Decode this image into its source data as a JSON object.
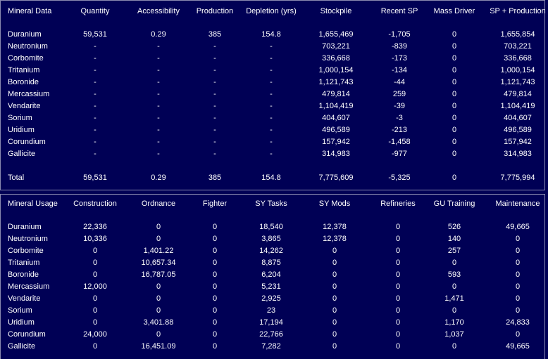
{
  "mineral_data": {
    "headers": [
      "Mineral Data",
      "Quantity",
      "Accessibility",
      "Production",
      "Depletion (yrs)",
      "Stockpile",
      "Recent SP",
      "Mass Driver",
      "SP + Production"
    ],
    "rows": [
      [
        "Duranium",
        "59,531",
        "0.29",
        "385",
        "154.8",
        "1,655,469",
        "-1,705",
        "0",
        "1,655,854"
      ],
      [
        "Neutronium",
        "-",
        "-",
        "-",
        "-",
        "703,221",
        "-839",
        "0",
        "703,221"
      ],
      [
        "Corbomite",
        "-",
        "-",
        "-",
        "-",
        "336,668",
        "-173",
        "0",
        "336,668"
      ],
      [
        "Tritanium",
        "-",
        "-",
        "-",
        "-",
        "1,000,154",
        "-134",
        "0",
        "1,000,154"
      ],
      [
        "Boronide",
        "-",
        "-",
        "-",
        "-",
        "1,121,743",
        "-44",
        "0",
        "1,121,743"
      ],
      [
        "Mercassium",
        "-",
        "-",
        "-",
        "-",
        "479,814",
        "259",
        "0",
        "479,814"
      ],
      [
        "Vendarite",
        "-",
        "-",
        "-",
        "-",
        "1,104,419",
        "-39",
        "0",
        "1,104,419"
      ],
      [
        "Sorium",
        "-",
        "-",
        "-",
        "-",
        "404,607",
        "-3",
        "0",
        "404,607"
      ],
      [
        "Uridium",
        "-",
        "-",
        "-",
        "-",
        "496,589",
        "-213",
        "0",
        "496,589"
      ],
      [
        "Corundium",
        "-",
        "-",
        "-",
        "-",
        "157,942",
        "-1,458",
        "0",
        "157,942"
      ],
      [
        "Gallicite",
        "-",
        "-",
        "-",
        "-",
        "314,983",
        "-977",
        "0",
        "314,983"
      ]
    ],
    "total": [
      "Total",
      "59,531",
      "0.29",
      "385",
      "154.8",
      "7,775,609",
      "-5,325",
      "0",
      "7,775,994"
    ]
  },
  "mineral_usage": {
    "headers": [
      "Mineral Usage",
      "Construction",
      "Ordnance",
      "Fighter",
      "SY Tasks",
      "SY Mods",
      "Refineries",
      "GU Training",
      "Maintenance"
    ],
    "rows": [
      [
        "Duranium",
        "22,336",
        "0",
        "0",
        "18,540",
        "12,378",
        "0",
        "526",
        "49,665"
      ],
      [
        "Neutronium",
        "10,336",
        "0",
        "0",
        "3,865",
        "12,378",
        "0",
        "140",
        "0"
      ],
      [
        "Corbomite",
        "0",
        "1,401.22",
        "0",
        "14,262",
        "0",
        "0",
        "257",
        "0"
      ],
      [
        "Tritanium",
        "0",
        "10,657.34",
        "0",
        "8,875",
        "0",
        "0",
        "0",
        "0"
      ],
      [
        "Boronide",
        "0",
        "16,787.05",
        "0",
        "6,204",
        "0",
        "0",
        "593",
        "0"
      ],
      [
        "Mercassium",
        "12,000",
        "0",
        "0",
        "5,231",
        "0",
        "0",
        "0",
        "0"
      ],
      [
        "Vendarite",
        "0",
        "0",
        "0",
        "2,925",
        "0",
        "0",
        "1,471",
        "0"
      ],
      [
        "Sorium",
        "0",
        "0",
        "0",
        "23",
        "0",
        "0",
        "0",
        "0"
      ],
      [
        "Uridium",
        "0",
        "3,401.88",
        "0",
        "17,194",
        "0",
        "0",
        "1,170",
        "24,833"
      ],
      [
        "Corundium",
        "24,000",
        "0",
        "0",
        "22,766",
        "0",
        "0",
        "1,037",
        "0"
      ],
      [
        "Gallicite",
        "0",
        "16,451.09",
        "0",
        "7,282",
        "0",
        "0",
        "0",
        "49,665"
      ]
    ]
  }
}
